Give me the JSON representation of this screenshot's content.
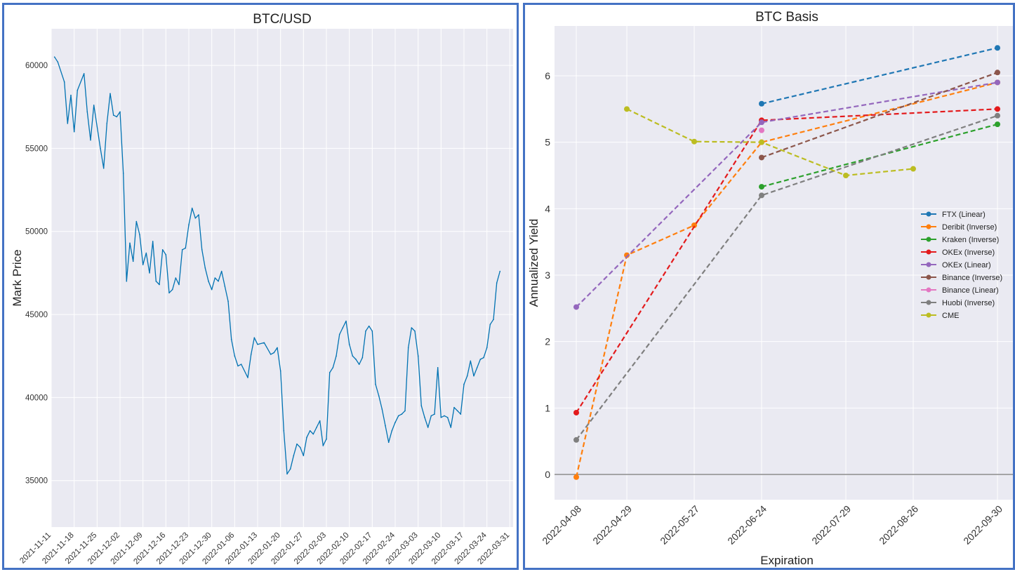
{
  "chart_data": [
    {
      "type": "line",
      "title": "BTC/USD",
      "xlabel": "",
      "ylabel": "Mark Price",
      "x_ticks": [
        "2021-11-11",
        "2021-11-18",
        "2021-11-25",
        "2021-12-02",
        "2021-12-09",
        "2021-12-16",
        "2021-12-23",
        "2021-12-30",
        "2022-01-06",
        "2022-01-13",
        "2022-01-20",
        "2022-01-27",
        "2022-02-03",
        "2022-02-10",
        "2022-02-17",
        "2022-02-24",
        "2022-03-03",
        "2022-03-10",
        "2022-03-17",
        "2022-03-24",
        "2022-03-31"
      ],
      "y_ticks": [
        35000,
        40000,
        45000,
        50000,
        55000,
        60000
      ],
      "ylim": [
        32200,
        62200
      ],
      "xlim": [
        "2021-11-11",
        "2022-04-01"
      ],
      "grid": true,
      "color": "#0072b2",
      "series": [
        {
          "x": [
            "2021-11-12",
            "2021-11-13",
            "2021-11-15",
            "2021-11-16",
            "2021-11-17",
            "2021-11-18",
            "2021-11-19",
            "2021-11-21",
            "2021-11-22",
            "2021-11-23",
            "2021-11-24",
            "2021-11-26",
            "2021-11-27",
            "2021-11-28",
            "2021-11-29",
            "2021-11-30",
            "2021-12-01",
            "2021-12-02",
            "2021-12-03",
            "2021-12-04",
            "2021-12-05",
            "2021-12-06",
            "2021-12-07",
            "2021-12-08",
            "2021-12-09",
            "2021-12-10",
            "2021-12-11",
            "2021-12-12",
            "2021-12-13",
            "2021-12-14",
            "2021-12-15",
            "2021-12-16",
            "2021-12-17",
            "2021-12-18",
            "2021-12-19",
            "2021-12-20",
            "2021-12-21",
            "2021-12-22",
            "2021-12-23",
            "2021-12-24",
            "2021-12-25",
            "2021-12-26",
            "2021-12-27",
            "2021-12-28",
            "2021-12-29",
            "2021-12-30",
            "2021-12-31",
            "2022-01-01",
            "2022-01-02",
            "2022-01-03",
            "2022-01-04",
            "2022-01-05",
            "2022-01-06",
            "2022-01-07",
            "2022-01-08",
            "2022-01-10",
            "2022-01-11",
            "2022-01-12",
            "2022-01-13",
            "2022-01-15",
            "2022-01-17",
            "2022-01-18",
            "2022-01-19",
            "2022-01-20",
            "2022-01-21",
            "2022-01-22",
            "2022-01-23",
            "2022-01-24",
            "2022-01-25",
            "2022-01-26",
            "2022-01-27",
            "2022-01-28",
            "2022-01-29",
            "2022-01-30",
            "2022-01-31",
            "2022-02-01",
            "2022-02-02",
            "2022-02-03",
            "2022-02-04",
            "2022-02-05",
            "2022-02-06",
            "2022-02-07",
            "2022-02-08",
            "2022-02-09",
            "2022-02-10",
            "2022-02-11",
            "2022-02-12",
            "2022-02-13",
            "2022-02-14",
            "2022-02-15",
            "2022-02-16",
            "2022-02-17",
            "2022-02-18",
            "2022-02-19",
            "2022-02-20",
            "2022-02-21",
            "2022-02-22",
            "2022-02-23",
            "2022-02-24",
            "2022-02-25",
            "2022-02-26",
            "2022-02-27",
            "2022-02-28",
            "2022-03-01",
            "2022-03-02",
            "2022-03-03",
            "2022-03-04",
            "2022-03-05",
            "2022-03-06",
            "2022-03-07",
            "2022-03-08",
            "2022-03-09",
            "2022-03-10",
            "2022-03-11",
            "2022-03-12",
            "2022-03-13",
            "2022-03-14",
            "2022-03-15",
            "2022-03-16",
            "2022-03-17",
            "2022-03-18",
            "2022-03-19",
            "2022-03-20",
            "2022-03-21",
            "2022-03-22",
            "2022-03-23",
            "2022-03-24",
            "2022-03-25",
            "2022-03-26",
            "2022-03-27",
            "2022-03-28"
          ],
          "y": [
            60500,
            60200,
            59000,
            56500,
            58200,
            56000,
            58500,
            59500,
            57200,
            55500,
            57600,
            55000,
            53800,
            56500,
            58300,
            57000,
            56900,
            57200,
            53500,
            47000,
            49300,
            48200,
            50600,
            49800,
            48000,
            48700,
            47500,
            49400,
            47000,
            46800,
            48900,
            48600,
            46300,
            46500,
            47200,
            46800,
            48900,
            49000,
            50400,
            51400,
            50800,
            51000,
            48900,
            47800,
            47000,
            46500,
            47200,
            47000,
            47600,
            46700,
            45800,
            43500,
            42500,
            41900,
            42000,
            41200,
            42600,
            43600,
            43200,
            43300,
            42600,
            42700,
            43000,
            41600,
            38000,
            35400,
            35700,
            36500,
            37200,
            37000,
            36500,
            37600,
            38000,
            37800,
            38200,
            38600,
            37100,
            37500,
            41500,
            41800,
            42500,
            43800,
            44200,
            44600,
            43200,
            42500,
            42300,
            42000,
            42400,
            44000,
            44300,
            44000,
            40800,
            40100,
            39300,
            38300,
            37300,
            38000,
            38500,
            38900,
            39000,
            39200,
            43000,
            44200,
            44000,
            42500,
            39500,
            38800,
            38200,
            38900,
            39000,
            41800,
            38800,
            38900,
            38800,
            38200,
            39400,
            39200,
            39000,
            40800,
            41300,
            42200,
            41300,
            41800,
            42300,
            42400,
            43000,
            44400,
            44700,
            46900,
            47600
          ]
        }
      ]
    },
    {
      "type": "line",
      "title": "BTC Basis",
      "xlabel": "Expiration",
      "ylabel": "Annualized Yield",
      "categories": [
        "2022-04-08",
        "2022-04-29",
        "2022-05-27",
        "2022-06-24",
        "2022-07-29",
        "2022-08-26",
        "2022-09-30"
      ],
      "y_ticks": [
        0,
        1,
        2,
        3,
        4,
        5,
        6
      ],
      "ylim": [
        -0.38,
        6.75
      ],
      "zero_line": true,
      "grid": true,
      "legend_position": "right",
      "line_style": "dashed",
      "series": [
        {
          "name": "FTX (Linear)",
          "color": "#1f77b4",
          "points": [
            [
              "2022-06-24",
              5.58
            ],
            [
              "2022-09-30",
              6.42
            ]
          ]
        },
        {
          "name": "Deribit (Inverse)",
          "color": "#ff7f0e",
          "points": [
            [
              "2022-04-08",
              -0.04
            ],
            [
              "2022-04-29",
              3.3
            ],
            [
              "2022-05-27",
              3.75
            ],
            [
              "2022-06-24",
              5.0
            ],
            [
              "2022-09-30",
              5.9
            ]
          ]
        },
        {
          "name": "Kraken (Inverse)",
          "color": "#2ca02c",
          "points": [
            [
              "2022-06-24",
              4.33
            ],
            [
              "2022-09-30",
              5.27
            ]
          ]
        },
        {
          "name": "OKEx (Inverse)",
          "color": "#e31a1c",
          "points": [
            [
              "2022-04-08",
              0.93
            ],
            [
              "2022-06-24",
              5.33
            ],
            [
              "2022-09-30",
              5.5
            ]
          ]
        },
        {
          "name": "OKEx (Linear)",
          "color": "#9467bd",
          "points": [
            [
              "2022-04-08",
              2.52
            ],
            [
              "2022-06-24",
              5.3
            ],
            [
              "2022-09-30",
              5.9
            ]
          ]
        },
        {
          "name": "Binance (Inverse)",
          "color": "#8c564b",
          "points": [
            [
              "2022-06-24",
              4.77
            ],
            [
              "2022-09-30",
              6.05
            ]
          ]
        },
        {
          "name": "Binance (Linear)",
          "color": "#e377c2",
          "points": [
            [
              "2022-06-24",
              5.18
            ]
          ]
        },
        {
          "name": "Huobi (Inverse)",
          "color": "#7f7f7f",
          "points": [
            [
              "2022-04-08",
              0.52
            ],
            [
              "2022-06-24",
              4.2
            ],
            [
              "2022-09-30",
              5.4
            ]
          ]
        },
        {
          "name": "CME",
          "color": "#bcbd22",
          "points": [
            [
              "2022-04-29",
              5.5
            ],
            [
              "2022-05-27",
              5.01
            ],
            [
              "2022-06-24",
              5.0
            ],
            [
              "2022-07-29",
              4.5
            ],
            [
              "2022-08-26",
              4.6
            ]
          ]
        }
      ]
    }
  ]
}
